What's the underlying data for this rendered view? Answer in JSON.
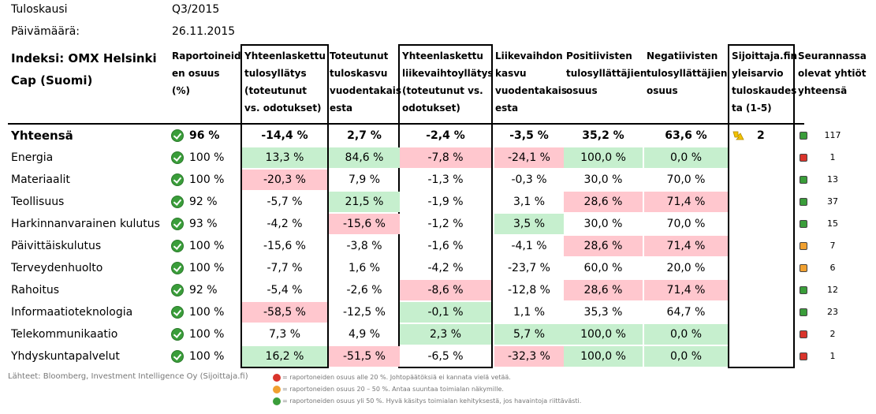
{
  "meta": {
    "period_label": "Tuloskausi",
    "period_value": "Q3/2015",
    "date_label": "Päivämäärä:",
    "date_value": "26.11.2015"
  },
  "index_title": "Indeksi: OMX Helsinki Cap (Suomi)",
  "headers": {
    "reported": "Raportoineid en osuus (%)",
    "earnings_surprise": "Yhteenlaskettu tulosyllätys (toteutunut vs. odotukset)",
    "earnings_growth": "Toteutunut tuloskasvu vuodentakais esta",
    "revenue_surprise": "Yhteenlaskettu liikevaihtoyllätys (toteutunut vs. odotukset)",
    "revenue_growth": "Liikevaihdon kasvu vuodentakais esta",
    "positive": "Positiivisten tulosyllättäjien osuus",
    "negative": "Negatiivisten tulosyllättäjien osuus",
    "sijoittaja": "Sijoittaja.fin yleisarvio tuloskaudes ta (1-5)",
    "followed": "Seurannassa olevat yhtiöt yhteensä"
  },
  "colors": {
    "green_cell": "#c6efce",
    "red_cell": "#ffc7ce",
    "status_green": "#3a9d3a",
    "status_red": "#d9342b",
    "status_orange": "#f0a030",
    "arrow": "#f2c200"
  },
  "total": {
    "name": "Yhteensä",
    "reported": "96 %",
    "earnings_surprise": "-14,4 %",
    "earnings_growth": "2,7 %",
    "revenue_surprise": "-2,4 %",
    "revenue_growth": "-3,5 %",
    "positive": "35,2 %",
    "negative": "63,6 %",
    "rating": "2",
    "rating_icon": "arrow-down-right-icon",
    "status": "green",
    "count": "117"
  },
  "rows": [
    {
      "name": "Energia",
      "reported": "100 %",
      "es": "13,3 %",
      "es_c": "g",
      "eg": "84,6 %",
      "eg_c": "g",
      "rs": "-7,8 %",
      "rs_c": "r",
      "rg": "-24,1 %",
      "rg_c": "r",
      "pos": "100,0 %",
      "pos_c": "g",
      "neg": "0,0 %",
      "neg_c": "g",
      "status": "red",
      "count": "1"
    },
    {
      "name": "Materiaalit",
      "reported": "100 %",
      "es": "-20,3 %",
      "es_c": "r",
      "eg": "7,9 %",
      "eg_c": "",
      "rs": "-1,3 %",
      "rs_c": "",
      "rg": "-0,3 %",
      "rg_c": "",
      "pos": "30,0 %",
      "pos_c": "",
      "neg": "70,0 %",
      "neg_c": "",
      "status": "green",
      "count": "13"
    },
    {
      "name": "Teollisuus",
      "reported": "92 %",
      "es": "-5,7 %",
      "es_c": "",
      "eg": "21,5 %",
      "eg_c": "g",
      "rs": "-1,9 %",
      "rs_c": "",
      "rg": "3,1 %",
      "rg_c": "",
      "pos": "28,6 %",
      "pos_c": "r",
      "neg": "71,4 %",
      "neg_c": "r",
      "status": "green",
      "count": "37"
    },
    {
      "name": "Harkinnanvarainen kulutus",
      "reported": "93 %",
      "es": "-4,2 %",
      "es_c": "",
      "eg": "-15,6 %",
      "eg_c": "r",
      "rs": "-1,2 %",
      "rs_c": "",
      "rg": "3,5 %",
      "rg_c": "g",
      "pos": "30,0 %",
      "pos_c": "",
      "neg": "70,0 %",
      "neg_c": "",
      "status": "green",
      "count": "15"
    },
    {
      "name": "Päivittäiskulutus",
      "reported": "100 %",
      "es": "-15,6 %",
      "es_c": "",
      "eg": "-3,8 %",
      "eg_c": "",
      "rs": "-1,6 %",
      "rs_c": "",
      "rg": "-4,1 %",
      "rg_c": "",
      "pos": "28,6 %",
      "pos_c": "r",
      "neg": "71,4 %",
      "neg_c": "r",
      "status": "orange",
      "count": "7"
    },
    {
      "name": "Terveydenhuolto",
      "reported": "100 %",
      "es": "-7,7 %",
      "es_c": "",
      "eg": "1,6 %",
      "eg_c": "",
      "rs": "-4,2 %",
      "rs_c": "",
      "rg": "-23,7 %",
      "rg_c": "",
      "pos": "60,0 %",
      "pos_c": "",
      "neg": "20,0 %",
      "neg_c": "",
      "status": "orange",
      "count": "6"
    },
    {
      "name": "Rahoitus",
      "reported": "92 %",
      "es": "-5,4 %",
      "es_c": "",
      "eg": "-2,6 %",
      "eg_c": "",
      "rs": "-8,6 %",
      "rs_c": "r",
      "rg": "-12,8 %",
      "rg_c": "",
      "pos": "28,6 %",
      "pos_c": "r",
      "neg": "71,4 %",
      "neg_c": "r",
      "status": "green",
      "count": "12"
    },
    {
      "name": "Informaatioteknologia",
      "reported": "100 %",
      "es": "-58,5 %",
      "es_c": "r",
      "eg": "-12,5 %",
      "eg_c": "",
      "rs": "-0,1 %",
      "rs_c": "g",
      "rg": "1,1 %",
      "rg_c": "",
      "pos": "35,3 %",
      "pos_c": "",
      "neg": "64,7 %",
      "neg_c": "",
      "status": "green",
      "count": "23"
    },
    {
      "name": "Telekommunikaatio",
      "reported": "100 %",
      "es": "7,3 %",
      "es_c": "",
      "eg": "4,9 %",
      "eg_c": "",
      "rs": "2,3 %",
      "rs_c": "g",
      "rg": "5,7 %",
      "rg_c": "g",
      "pos": "100,0 %",
      "pos_c": "g",
      "neg": "0,0 %",
      "neg_c": "g",
      "status": "red",
      "count": "2"
    },
    {
      "name": "Yhdyskuntapalvelut",
      "reported": "100 %",
      "es": "16,2 %",
      "es_c": "g",
      "eg": "-51,5 %",
      "eg_c": "r",
      "rs": "-6,5 %",
      "rs_c": "",
      "rg": "-32,3 %",
      "rg_c": "r",
      "pos": "100,0 %",
      "pos_c": "g",
      "neg": "0,0 %",
      "neg_c": "g",
      "status": "red",
      "count": "1"
    }
  ],
  "footer": {
    "source": "Lähteet: Bloomberg, Investment Intelligence Oy (Sijoittaja.fi)",
    "legend_red": "= raportoneiden osuus alle 20 %. Johtopäätöksiä ei kannata vielä vetää.",
    "legend_orange": "= raportoneiden osuus 20 – 50 %. Antaa suuntaa toimialan näkymille.",
    "legend_green": "= raportoneiden osuus yli 50 %. Hyvä käsitys toimialan kehityksestä, jos havaintoja riittävästi."
  }
}
